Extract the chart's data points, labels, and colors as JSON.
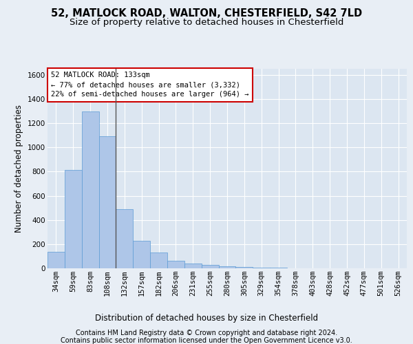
{
  "title_line1": "52, MATLOCK ROAD, WALTON, CHESTERFIELD, S42 7LD",
  "title_line2": "Size of property relative to detached houses in Chesterfield",
  "xlabel": "Distribution of detached houses by size in Chesterfield",
  "ylabel": "Number of detached properties",
  "footer_line1": "Contains HM Land Registry data © Crown copyright and database right 2024.",
  "footer_line2": "Contains public sector information licensed under the Open Government Licence v3.0.",
  "annotation_line1": "52 MATLOCK ROAD: 133sqm",
  "annotation_line2": "← 77% of detached houses are smaller (3,332)",
  "annotation_line3": "22% of semi-detached houses are larger (964) →",
  "bar_color": "#aec6e8",
  "bar_edge_color": "#5b9bd5",
  "vline_color": "#555555",
  "annotation_box_color": "#ffffff",
  "annotation_box_edge": "#cc0000",
  "categories": [
    "34sqm",
    "59sqm",
    "83sqm",
    "108sqm",
    "132sqm",
    "157sqm",
    "182sqm",
    "206sqm",
    "231sqm",
    "255sqm",
    "280sqm",
    "305sqm",
    "329sqm",
    "354sqm",
    "378sqm",
    "403sqm",
    "428sqm",
    "452sqm",
    "477sqm",
    "501sqm",
    "526sqm"
  ],
  "values": [
    135,
    815,
    1295,
    1095,
    490,
    230,
    130,
    65,
    38,
    26,
    16,
    10,
    5,
    3,
    2,
    1,
    1,
    1,
    0,
    0,
    0
  ],
  "ylim": [
    0,
    1650
  ],
  "yticks": [
    0,
    200,
    400,
    600,
    800,
    1000,
    1200,
    1400,
    1600
  ],
  "background_color": "#e8eef5",
  "plot_bg_color": "#dce6f1",
  "grid_color": "#ffffff",
  "title_fontsize": 10.5,
  "subtitle_fontsize": 9.5,
  "axis_label_fontsize": 8.5,
  "tick_fontsize": 7.5,
  "footer_fontsize": 7,
  "annotation_fontsize": 7.5,
  "vline_bin_index": 4
}
